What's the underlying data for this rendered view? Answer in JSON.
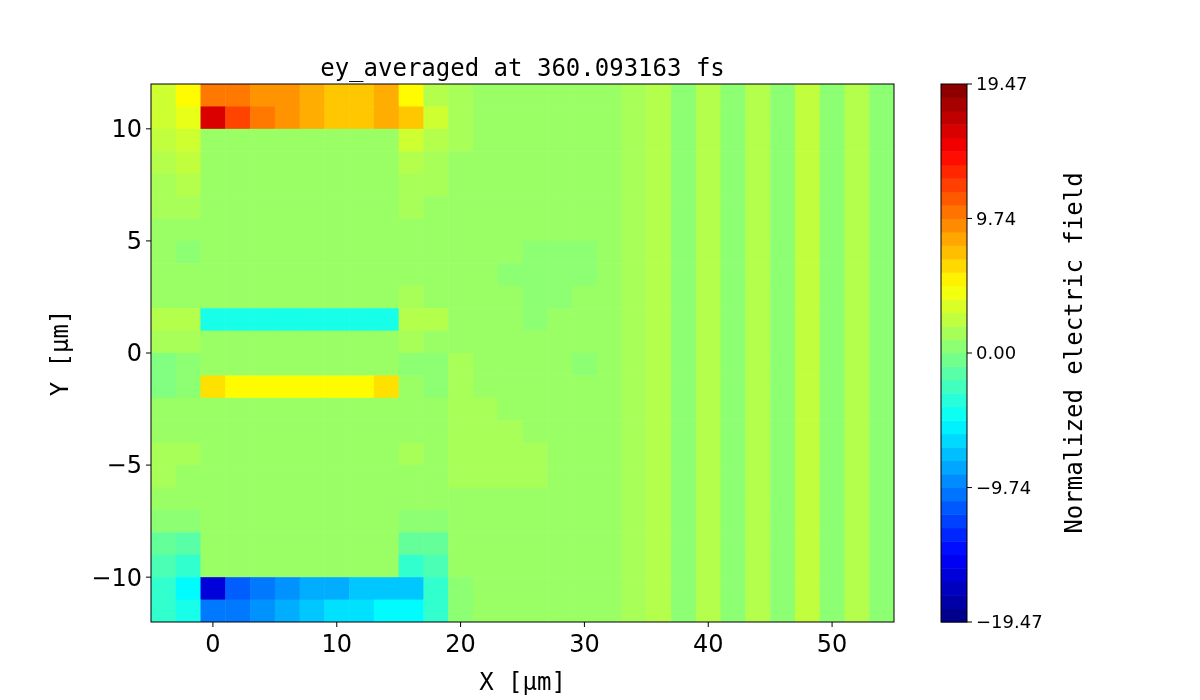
{
  "chart_data": {
    "type": "heatmap",
    "title": "ey_averaged at 360.093163 fs",
    "xlabel": "X [μm]",
    "ylabel": "Y [μm]",
    "clabel": "Normalized electric field",
    "x": [
      -4,
      -2,
      0,
      2,
      4,
      6,
      8,
      10,
      12,
      14,
      16,
      18,
      20,
      22,
      24,
      26,
      28,
      30,
      32,
      34,
      36,
      38,
      40,
      42,
      44,
      46,
      48,
      50,
      52,
      54
    ],
    "y": [
      11.5,
      10.5,
      9.5,
      8.5,
      7.5,
      6.5,
      5.5,
      4.5,
      3.5,
      2.5,
      1.5,
      0.5,
      -0.5,
      -1.5,
      -2.5,
      -3.5,
      -4.5,
      -5.5,
      -6.5,
      -7.5,
      -8.5,
      -9.5,
      -10.5,
      -11.5
    ],
    "cells": [
      [
        3,
        5,
        10,
        10,
        9,
        9,
        8,
        7,
        7,
        8,
        5,
        2,
        1.5,
        1,
        1,
        1,
        1,
        1,
        1,
        1.5,
        2,
        0.5,
        2,
        0.5,
        2,
        0.5,
        2.5,
        0.5,
        2,
        0.5
      ],
      [
        3,
        4,
        16,
        12,
        10,
        9,
        8,
        7,
        7,
        8,
        7,
        3,
        1.5,
        1,
        1,
        1,
        1,
        1,
        1,
        1.5,
        2,
        0.5,
        2,
        0.5,
        2,
        0.5,
        2.5,
        0.5,
        2,
        0.5
      ],
      [
        2.5,
        3,
        1,
        1,
        1,
        1,
        1,
        1,
        1,
        1,
        3,
        2,
        1.5,
        1,
        1,
        1,
        1,
        1,
        1,
        1.5,
        2,
        0.5,
        2,
        0.5,
        2,
        0.5,
        2.5,
        0.5,
        2,
        0.5
      ],
      [
        2,
        2.5,
        1,
        1,
        1,
        1,
        1,
        1,
        1,
        1,
        2,
        1.5,
        1,
        1,
        1,
        1,
        1,
        1,
        1,
        1.5,
        2,
        0.5,
        2,
        0.5,
        2,
        0.5,
        2.5,
        0.5,
        2,
        0.5
      ],
      [
        1.5,
        2,
        1,
        1,
        1,
        1,
        1,
        1,
        1,
        1,
        1.5,
        1.5,
        1,
        1,
        1,
        1,
        1,
        1,
        1,
        1.5,
        2,
        0.5,
        2,
        0.5,
        2,
        0.5,
        2.5,
        0.5,
        2,
        0.5
      ],
      [
        1.5,
        1.5,
        1,
        1,
        1,
        1,
        1,
        1,
        1,
        1,
        1.5,
        1,
        1,
        1,
        1,
        1,
        1,
        1,
        1,
        1.5,
        2,
        0.5,
        2,
        0.5,
        2,
        0.5,
        2.5,
        0.5,
        2,
        0.5
      ],
      [
        1,
        1,
        1,
        1,
        1,
        1,
        1,
        1,
        1,
        1,
        1,
        1,
        1,
        1,
        1,
        1,
        1,
        1,
        1,
        1.5,
        2,
        0.5,
        2,
        0.5,
        2,
        0.5,
        2.5,
        0.5,
        2,
        0.5
      ],
      [
        1,
        0.5,
        1,
        1,
        1,
        1,
        1,
        1,
        1,
        1,
        1,
        1,
        1,
        1,
        1,
        0.5,
        0.5,
        0.5,
        1,
        1.5,
        2,
        0.5,
        2,
        0.5,
        2,
        0.5,
        2.5,
        0.5,
        2,
        0.5
      ],
      [
        1,
        1,
        1,
        1,
        1,
        1,
        1,
        1,
        1,
        1,
        1,
        1,
        1,
        1,
        0.5,
        0.5,
        0.5,
        0.5,
        1,
        1.5,
        2,
        0.5,
        2,
        0.5,
        2,
        0.5,
        2.5,
        0.5,
        2,
        0.5
      ],
      [
        1,
        1,
        1,
        1,
        1,
        1,
        1,
        1,
        1,
        1,
        1.5,
        1,
        1,
        1,
        1,
        0.5,
        0.5,
        1,
        1,
        1.5,
        2,
        0.5,
        2,
        0.5,
        2,
        0.5,
        2.5,
        0.5,
        2,
        0.5
      ],
      [
        2,
        2,
        -4,
        -4,
        -4,
        -4,
        -4,
        -4,
        -4,
        -4,
        2,
        2,
        1,
        1,
        1,
        0.5,
        1,
        1,
        1,
        1.5,
        2,
        0.5,
        2,
        0.5,
        2,
        0.5,
        2.5,
        0.5,
        2,
        0.5
      ],
      [
        1.5,
        1.5,
        1,
        1,
        1,
        1,
        1,
        1,
        1,
        1,
        1.5,
        1,
        1,
        1,
        1,
        1,
        1,
        1,
        1,
        1.5,
        2,
        0.5,
        2,
        0.5,
        2,
        0.5,
        2.5,
        0.5,
        2,
        0.5
      ],
      [
        0,
        0.5,
        1,
        1,
        1,
        1,
        1,
        1,
        1,
        1,
        0.5,
        0.5,
        1.5,
        1,
        1,
        1,
        1,
        0.5,
        1,
        1.5,
        2,
        0.5,
        2,
        0.5,
        2,
        0.5,
        2.5,
        0.5,
        2,
        0.5
      ],
      [
        0,
        0.5,
        6,
        5,
        5,
        5,
        5,
        5,
        5,
        6,
        1,
        0.5,
        1.5,
        1,
        1,
        1,
        1,
        1,
        1,
        1.5,
        2,
        0.5,
        2,
        0.5,
        2,
        0.5,
        2.5,
        0.5,
        2,
        0.5
      ],
      [
        1,
        1,
        1,
        1,
        1,
        1,
        1,
        1,
        1,
        1,
        1,
        1,
        1.5,
        1.5,
        1,
        1,
        1,
        1,
        1,
        1.5,
        2,
        0.5,
        2,
        0.5,
        2,
        0.5,
        2.5,
        0.5,
        2,
        0.5
      ],
      [
        1,
        1,
        1,
        1,
        1,
        1,
        1,
        1,
        1,
        1,
        1,
        1,
        1.5,
        1.5,
        1.5,
        1,
        1,
        1,
        1,
        1.5,
        2,
        0.5,
        2,
        0.5,
        2,
        0.5,
        2.5,
        0.5,
        2,
        0.5
      ],
      [
        1.5,
        1.5,
        1,
        1,
        1,
        1,
        1,
        1,
        1,
        1,
        1.5,
        1,
        1.5,
        1.5,
        1.5,
        1.5,
        1,
        1,
        1,
        1.5,
        2,
        0.5,
        2,
        0.5,
        2,
        0.5,
        2.5,
        0.5,
        2,
        0.5
      ],
      [
        1.5,
        1,
        1,
        1,
        1,
        1,
        1,
        1,
        1,
        1,
        1,
        1,
        1.5,
        1.5,
        1.5,
        1.5,
        1,
        1,
        1,
        1.5,
        2,
        0.5,
        2,
        0.5,
        2,
        0.5,
        2.5,
        0.5,
        2,
        0.5
      ],
      [
        1,
        1,
        1,
        1,
        1,
        1,
        1,
        1,
        1,
        1,
        1,
        1,
        1,
        1,
        1,
        1,
        1,
        1,
        1,
        1.5,
        2,
        0.5,
        2,
        0.5,
        2,
        0.5,
        2.5,
        0.5,
        2,
        0.5
      ],
      [
        0.5,
        0.5,
        1,
        1,
        1,
        1,
        1,
        1,
        1,
        1,
        0.5,
        0.5,
        1,
        1,
        1,
        1,
        1,
        1,
        1,
        1.5,
        2,
        0.5,
        2,
        0.5,
        2,
        0.5,
        2.5,
        0.5,
        2,
        0.5
      ],
      [
        -1,
        -1.5,
        1,
        1,
        1,
        1,
        1,
        1,
        1,
        1,
        -1,
        -1,
        1,
        1,
        1,
        1,
        1,
        1,
        1,
        1.5,
        2,
        0.5,
        2,
        0.5,
        2,
        0.5,
        2.5,
        0.5,
        2,
        0.5
      ],
      [
        -2,
        -3,
        1,
        1,
        1,
        1,
        1,
        1,
        1,
        1,
        -3,
        -2,
        1,
        1,
        1,
        1,
        1,
        1,
        1,
        1.5,
        2,
        0.5,
        2,
        0.5,
        2,
        0.5,
        2.5,
        0.5,
        2,
        0.5
      ],
      [
        -3,
        -5,
        -16,
        -11,
        -10,
        -9,
        -8,
        -8,
        -7,
        -7,
        -7,
        -3,
        0.5,
        1,
        1,
        1,
        1,
        1,
        1,
        1.5,
        2,
        0.5,
        2,
        0.5,
        2,
        0.5,
        2.5,
        0.5,
        2,
        0.5
      ],
      [
        -3,
        -4,
        -10,
        -10,
        -9,
        -8,
        -7,
        -6,
        -6,
        -5,
        -5,
        -3,
        0.5,
        1,
        1,
        1,
        1,
        1,
        1,
        1.5,
        2,
        0.5,
        2,
        0.5,
        2,
        0.5,
        2.5,
        0.5,
        2,
        0.5
      ]
    ],
    "xlim": [
      -5,
      55
    ],
    "xticks": [
      0,
      10,
      20,
      30,
      40,
      50
    ],
    "ylim": [
      -12,
      12
    ],
    "yticks": [
      -10,
      -5,
      0,
      5,
      10
    ],
    "clim": [
      -19.47,
      19.47
    ],
    "cticks": [
      {
        "value": -19.47,
        "label": "−19.47"
      },
      {
        "value": -9.74,
        "label": "−9.74"
      },
      {
        "value": 0,
        "label": "0.00"
      },
      9.74,
      19.47
    ]
  }
}
